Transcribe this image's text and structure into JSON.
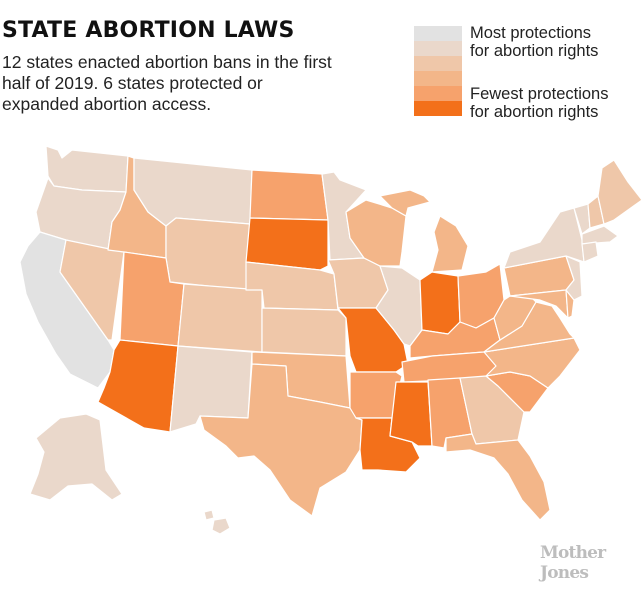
{
  "header": {
    "title": "STATE ABORTION LAWS",
    "subtitle": "12 states enacted abortion bans in the first half of 2019. 6 states protected or expanded abortion access."
  },
  "legend": {
    "top_label_line1": "Most protections",
    "top_label_line2": "for abortion rights",
    "bottom_label_line1": "Fewest protections",
    "bottom_label_line2": "for abortion rights",
    "scale_colors": [
      "#e2e2e2",
      "#ead8cb",
      "#efc7a9",
      "#f3b689",
      "#f6a26c",
      "#f3701a"
    ]
  },
  "credit": "Mother Jones",
  "map_data": {
    "type": "choropleth",
    "levels": 6,
    "scale_note_1_most_6_fewest": true,
    "states": {
      "CA": 1,
      "OR": 2,
      "WA": 2,
      "MT": 2,
      "MN": 2,
      "NY": 2,
      "IL": 2,
      "NJ": 2,
      "VT": 2,
      "HI": 2,
      "AK": 2,
      "NM": 2,
      "MA": 2,
      "CT": 2,
      "ME": 3,
      "NH": 3,
      "NV": 3,
      "CO": 3,
      "WY": 3,
      "KS": 3,
      "IA": 3,
      "NE": 3,
      "GA": 3,
      "ID": 4,
      "TX": 4,
      "OK": 4,
      "WI": 4,
      "MI": 4,
      "FL": 4,
      "NC": 4,
      "VA": 4,
      "PA": 4,
      "MD": 4,
      "DE": 4,
      "WV": 4,
      "UT": 5,
      "ND": 5,
      "OH": 5,
      "KY": 5,
      "TN": 5,
      "AL": 5,
      "SC": 5,
      "AR": 5,
      "AZ": 6,
      "SD": 6,
      "MO": 6,
      "LA": 6,
      "MS": 6,
      "IN": 6
    }
  }
}
